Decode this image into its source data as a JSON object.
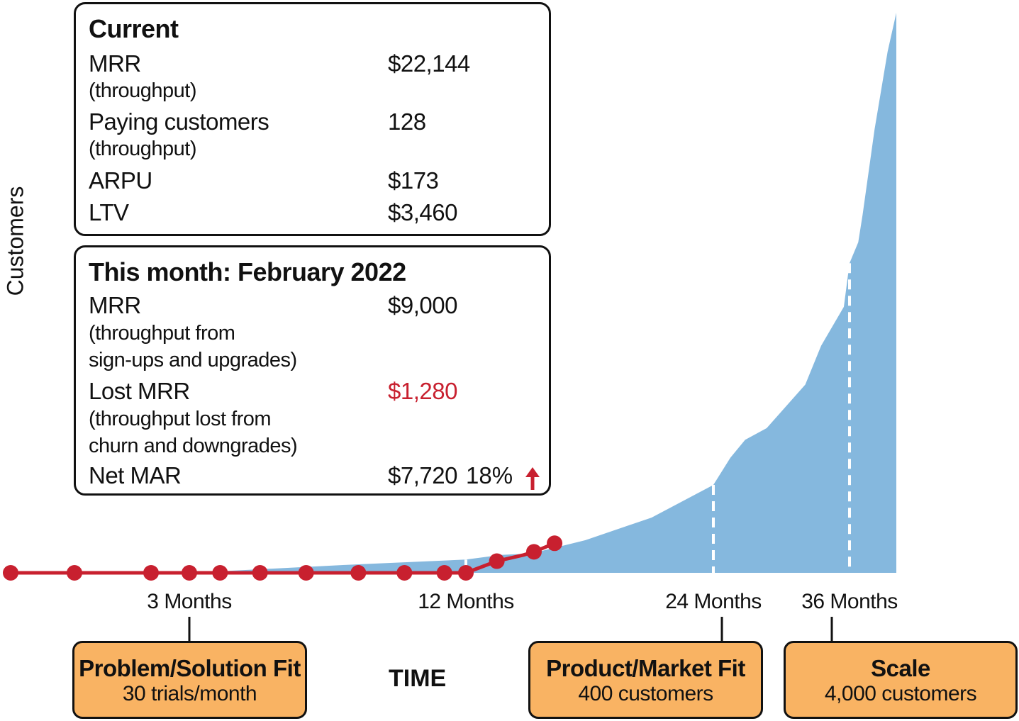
{
  "chart_data": {
    "type": "area",
    "ylabel": "Customers",
    "xlabel": "TIME",
    "x_ticks": [
      "3 Months",
      "12 Months",
      "24 Months",
      "36 Months"
    ],
    "tick_months": [
      3,
      12,
      24,
      36
    ],
    "projected_area": {
      "x_months": [
        3,
        5,
        8,
        12,
        13.7,
        15.2,
        17.8,
        21,
        24,
        25.5,
        26.8,
        28.7,
        32.1,
        33.5,
        35.5,
        36,
        36.8,
        37.2,
        38.3,
        39.5,
        40.3
      ],
      "y_customers": [
        0,
        40,
        100,
        170,
        230,
        250,
        420,
        710,
        1130,
        1480,
        1710,
        1860,
        2420,
        2920,
        3420,
        3980,
        4250,
        4600,
        5700,
        6700,
        7200
      ]
    },
    "actual_series": {
      "x_months": [
        -2,
        0,
        2,
        3,
        4,
        5.3,
        6.8,
        8.5,
        10,
        11.3,
        12,
        13.5,
        14.8,
        15.3,
        16.3
      ],
      "y_customers": [
        0,
        0,
        0,
        0,
        0,
        0,
        0,
        0,
        0,
        0,
        0,
        150,
        230,
        270,
        380
      ],
      "color": "#c8202f"
    },
    "area_color": "#85b8de"
  },
  "current": {
    "title": "Current",
    "mrr_label": "MRR",
    "mrr_sub": "(throughput)",
    "mrr_value": "$22,144",
    "customers_label": "Paying customers",
    "customers_sub": "(throughput)",
    "customers_value": "128",
    "arpu_label": "ARPU",
    "arpu_value": "$173",
    "ltv_label": "LTV",
    "ltv_value": "$3,460"
  },
  "month": {
    "title": "This month: February 2022",
    "mrr_label": "MRR",
    "mrr_sub1": "(throughput from",
    "mrr_sub2": "sign-ups and upgrades)",
    "mrr_value": "$9,000",
    "lost_label": "Lost MRR",
    "lost_sub1": "(throughput lost from",
    "lost_sub2": "churn and downgrades)",
    "lost_value": "$1,280",
    "lost_color": "#c8202f",
    "net_label": "Net MAR",
    "net_value": "$7,720",
    "net_pct": "18%",
    "trend_icon": "up-arrow-icon"
  },
  "stages": [
    {
      "name": "Problem/Solution Fit",
      "desc": "30 trials/month",
      "tick": "3 Months"
    },
    {
      "name": "Product/Market Fit",
      "desc": "400 customers",
      "tick": "24 Months"
    },
    {
      "name": "Scale",
      "desc": "4,000 customers",
      "tick": "36 Months"
    }
  ],
  "stage_color": "#f9b363"
}
